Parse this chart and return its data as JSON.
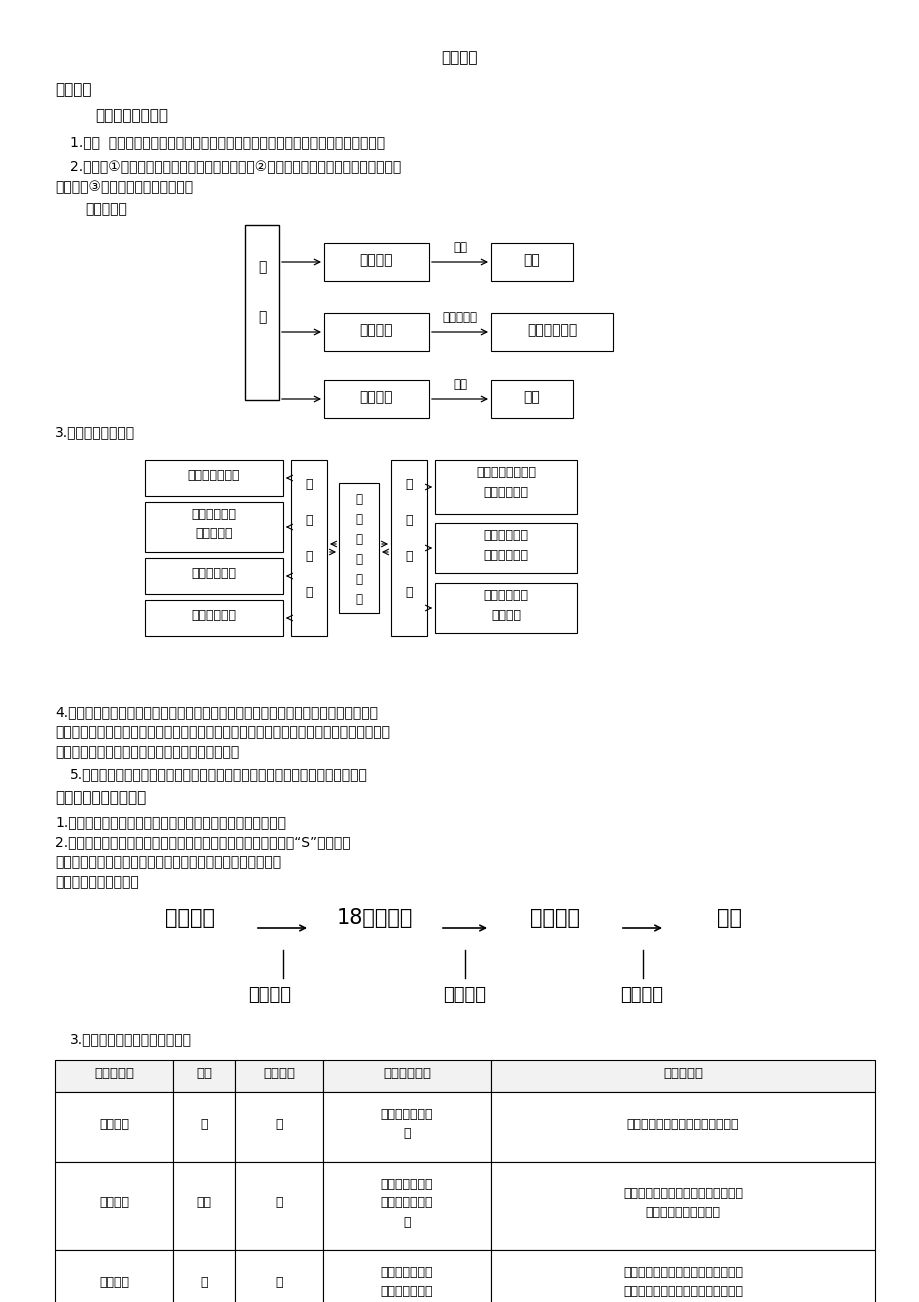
{
  "bg_color": "#ffffff",
  "page_width": 9.2,
  "page_height": 13.02,
  "title": "课堂互动",
  "section1_header": "三点剖析",
  "subsection1_title": "一、什么是城市化",
  "para1": "1.概念  人口向城镇集聚和城市范围不断扩大、乡村变为城镇的过程，就是城市化。",
  "para2_line1": "2.标志：①城市人口占总人口的比重持续上升；②劳动力从第一产业向第二、三产业逐",
  "para2_line2": "渐转移；③城市用地规模不断扩大。",
  "para2_line3": "图示如下：",
  "para3": "3.城市化的动力机制",
  "para4_line1": "4.城市化的意义：城市是区域发展的经济中心，能够带动区域经济发展；城市化不仅带",
  "para4_line2": "来了聚落形态的变化，还带来了生产方式、生活方式、价值观念等的巨大变化，它是一个地",
  "para4_line3": "区社会经济发展的必然结果，是社会进步的表现。",
  "para5": "5.城市化不仅包括物质形态上的变化，还包括居民生活方式和思想观念的变化。",
  "subsection2_title": "二、世界城市化的进程",
  "sec2_para1": "1.城市化作为一种全球性的现象，主要发生在工业革命以后。",
  "sec2_para2": "2.世界城市化进程曲线：随时间的变化可表示为一条稍被拉平的“S”形曲线。",
  "sec2_para3": "即分为三个阶段：初期阶段、中期加速阶段、后期成熟阶段。",
  "sec2_para4": "城市发展的三个阶段。",
  "sec2_para5": "3.城市化发展的三个阶段的特点",
  "table_headers": [
    "城市化阶段",
    "水平",
    "发展速度",
    "地域扩展趋势",
    "常见的问题"
  ],
  "table_row0": [
    "初期阶段",
    "低",
    "慢",
    "规模小，幅度扩||大",
    "城市对经济发展的促进作用不明显"
  ],
  "table_row1": [
    "中期阶段",
    "较高",
    "快",
    "规模快速扩大，||并出现郊区城市||化",
    "出现了劳动力过剑、交通拥挤、住房||紧张、环境恶化等问题"
  ],
  "table_row2": [
    "后期阶段",
    "高",
    "慢",
    "城市地域界线模||糊，出现逆城市",
    "大城市的市中心出现了失业率增高、||空旧房增多、犯罪率升高、市中心的"
  ],
  "timeline_nodes": [
    "城市出现",
    "18世纪中期",
    "二战结束",
    "现在"
  ],
  "timeline_labels": [
    "缓慢发展",
    "加速发展",
    "空前发展"
  ]
}
